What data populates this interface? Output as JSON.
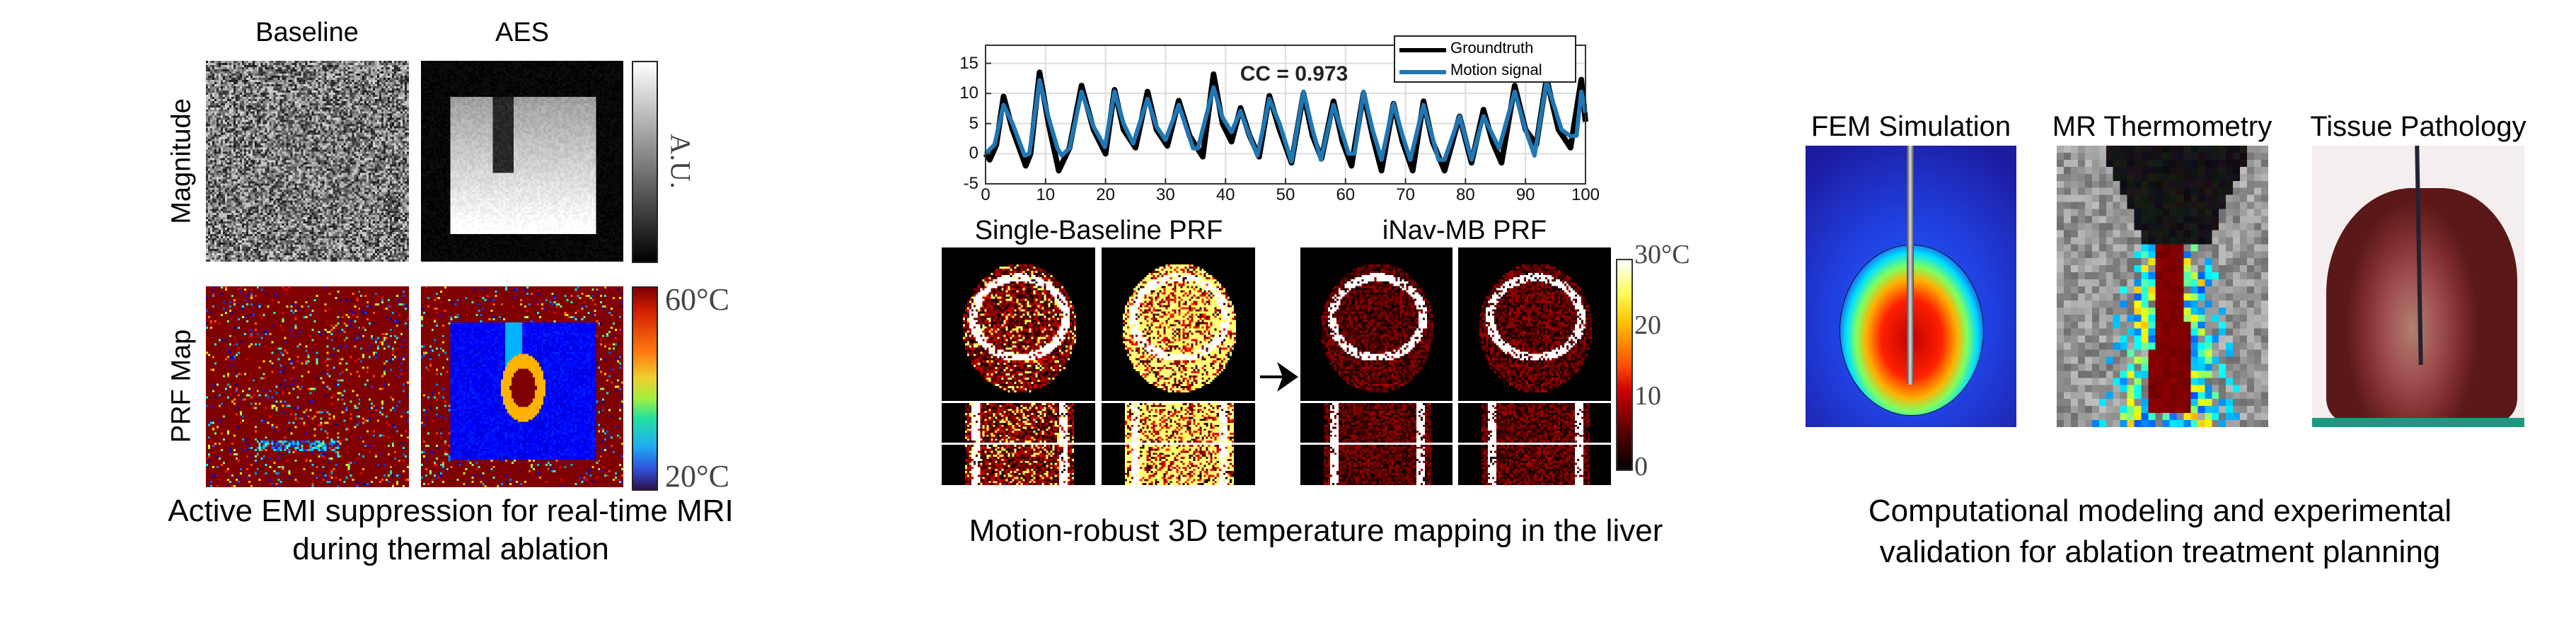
{
  "panel_emi": {
    "column_titles": [
      "Baseline",
      "AES"
    ],
    "row_labels": [
      "Magnitude",
      "PRF Map"
    ],
    "magnitude_colorbar_label": "A.U.",
    "prf_colorbar_max": "60°C",
    "prf_colorbar_min": "20°C",
    "caption_lines": [
      "Active EMI suppression for real-time MRI",
      "during thermal ablation"
    ]
  },
  "panel_liver": {
    "annotation": "CC = 0.973",
    "group_titles": [
      "Single-Baseline PRF",
      "iNav-MB PRF"
    ],
    "colorbar_labels": [
      "30°C",
      "20",
      "10",
      "0"
    ],
    "caption": "Motion-robust 3D temperature mapping in the liver"
  },
  "panel_model": {
    "titles": [
      "FEM Simulation",
      "MR Thermometry",
      "Tissue Pathology"
    ],
    "caption_lines": [
      "Computational modeling and experimental",
      "validation for ablation treatment planning"
    ]
  },
  "chart_data": {
    "type": "line",
    "title": "",
    "xlabel": "",
    "ylabel": "",
    "xlim": [
      0,
      100
    ],
    "ylim": [
      -5,
      18
    ],
    "xticks": [
      "0",
      "10",
      "20",
      "30",
      "40",
      "50",
      "60",
      "70",
      "80",
      "90",
      "100"
    ],
    "yticks": [
      "-5",
      "0",
      "5",
      "10",
      "15"
    ],
    "grid": true,
    "legend_position": "top-right",
    "series": [
      {
        "name": "Groundtruth",
        "color": "#000000",
        "x": [
          0,
          0.7,
          1.8,
          3,
          4.5,
          6.7,
          7.5,
          9,
          10.5,
          12.2,
          14,
          16,
          18,
          20,
          21.5,
          23,
          25,
          27,
          28.5,
          30.3,
          32.2,
          34,
          36.2,
          38,
          39.5,
          41,
          42.5,
          44,
          45.6,
          47.3,
          49,
          51,
          53,
          54.5,
          56,
          58,
          59.5,
          61,
          63,
          64.5,
          66,
          68,
          69.5,
          71.2,
          73,
          74.5,
          76.5,
          79,
          81,
          83,
          84.5,
          86,
          88.2,
          90,
          91.8,
          93.5,
          95.5,
          97.5,
          99.3,
          100
        ],
        "y": [
          0,
          -1,
          1.5,
          9.5,
          4,
          -2,
          0,
          13.5,
          5,
          -2.8,
          1,
          11.3,
          4,
          0,
          10.6,
          4,
          1,
          10.3,
          4,
          1.3,
          8.8,
          3,
          -0.5,
          13.2,
          5,
          2,
          7.6,
          3,
          -0.5,
          9.6,
          4,
          -1.5,
          10,
          3,
          -0.8,
          8.7,
          2,
          -2,
          10,
          3,
          -2.8,
          8.3,
          2,
          -2.8,
          8.7,
          2,
          -2.8,
          6.2,
          -1.5,
          7.3,
          2,
          -1.5,
          11.3,
          4,
          1.5,
          12.5,
          4,
          1,
          12.3,
          5.3
        ]
      },
      {
        "name": "Motion signal",
        "color": "#1f77b4",
        "x": [
          0,
          1.5,
          3,
          4.5,
          6.5,
          7.3,
          9,
          10.5,
          12,
          12.7,
          14,
          16,
          18,
          19.9,
          21.5,
          23,
          24.6,
          27,
          28.5,
          30,
          32.2,
          34.6,
          35.4,
          38,
          39.5,
          41,
          42.5,
          44,
          45.3,
          47.3,
          49,
          51,
          53,
          54.5,
          55.9,
          58,
          60.5,
          61.5,
          63,
          64.5,
          66,
          68,
          69.5,
          70.8,
          73,
          75.5,
          76.5,
          79,
          81,
          83,
          85.6,
          88.2,
          90,
          91.5,
          93.5,
          96,
          97.5,
          98.5,
          99.3,
          100
        ],
        "y": [
          0,
          1.5,
          8.1,
          5,
          -0.3,
          0,
          12.2,
          6,
          0.9,
          -0.3,
          0.9,
          10.3,
          4.5,
          1.1,
          10.3,
          5,
          1.7,
          9.1,
          4.5,
          2.3,
          8.1,
          0.9,
          0.9,
          11,
          6,
          3.6,
          7.1,
          3,
          -0.3,
          9.1,
          5,
          -1.3,
          10.3,
          4,
          -1,
          8.1,
          0,
          0,
          10.3,
          4,
          -1,
          8.3,
          3,
          -1,
          8.1,
          -1,
          -1,
          6.2,
          -1,
          6.2,
          0.9,
          10.3,
          4,
          -0.3,
          12,
          4,
          2.9,
          3,
          10.3,
          6.8
        ]
      }
    ]
  },
  "colors": {
    "motion_signal": "#1f77b4",
    "groundtruth": "#000000",
    "prf_background": "#7f0000"
  }
}
